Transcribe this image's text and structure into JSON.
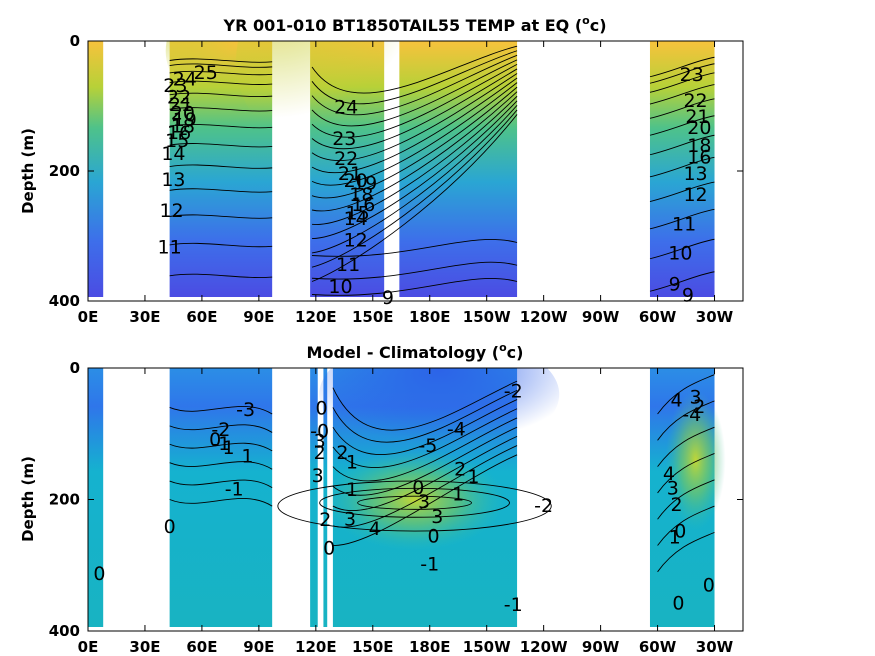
{
  "chart_data": [
    {
      "type": "heatmap",
      "title_main": "YR 001-010 BT1850TAIL55 TEMP at EQ (",
      "title_sup": "o",
      "title_end": "c)",
      "ylabel": "Depth (m)",
      "xlabel": "",
      "x_ticks": [
        "0E",
        "30E",
        "60E",
        "90E",
        "120E",
        "150E",
        "180E",
        "150W",
        "120W",
        "90W",
        "60W",
        "30W"
      ],
      "y_ticks": [
        "0",
        "200",
        "400"
      ],
      "ylim": [
        0,
        400
      ],
      "color_low": "#4a50e4",
      "color_high": "#f9bb3a",
      "data_regions": [
        [
          0,
          8
        ],
        [
          43,
          97
        ],
        [
          117,
          156
        ],
        [
          164,
          226
        ],
        [
          296,
          330
        ]
      ],
      "contour_labels": [
        {
          "t": "25",
          "lon": 62,
          "d": 48
        },
        {
          "t": "24",
          "lon": 51,
          "d": 58
        },
        {
          "t": "23",
          "lon": 46,
          "d": 68
        },
        {
          "t": "22",
          "lon": 48,
          "d": 85
        },
        {
          "t": "21",
          "lon": 49,
          "d": 97
        },
        {
          "t": "20",
          "lon": 50,
          "d": 110
        },
        {
          "t": "19",
          "lon": 51,
          "d": 120
        },
        {
          "t": "18",
          "lon": 50,
          "d": 130
        },
        {
          "t": "16",
          "lon": 48,
          "d": 140
        },
        {
          "t": "15",
          "lon": 47,
          "d": 152
        },
        {
          "t": "14",
          "lon": 45,
          "d": 172
        },
        {
          "t": "13",
          "lon": 45,
          "d": 212
        },
        {
          "t": "12",
          "lon": 44,
          "d": 260
        },
        {
          "t": "11",
          "lon": 43,
          "d": 316
        },
        {
          "t": "24",
          "lon": 136,
          "d": 101
        },
        {
          "t": "23",
          "lon": 135,
          "d": 149
        },
        {
          "t": "22",
          "lon": 136,
          "d": 180
        },
        {
          "t": "21",
          "lon": 138,
          "d": 203
        },
        {
          "t": "20",
          "lon": 141,
          "d": 214
        },
        {
          "t": "19",
          "lon": 146,
          "d": 218
        },
        {
          "t": "18",
          "lon": 144,
          "d": 235
        },
        {
          "t": "16",
          "lon": 145,
          "d": 251
        },
        {
          "t": "15",
          "lon": 142,
          "d": 264
        },
        {
          "t": "14",
          "lon": 141,
          "d": 272
        },
        {
          "t": "12",
          "lon": 141,
          "d": 305
        },
        {
          "t": "11",
          "lon": 137,
          "d": 343
        },
        {
          "t": "10",
          "lon": 133,
          "d": 377
        },
        {
          "t": "9",
          "lon": 158,
          "d": 394
        },
        {
          "t": "23",
          "lon": 318,
          "d": 51
        },
        {
          "t": "22",
          "lon": 320,
          "d": 91
        },
        {
          "t": "21",
          "lon": 321,
          "d": 115
        },
        {
          "t": "20",
          "lon": 322,
          "d": 132
        },
        {
          "t": "18",
          "lon": 322,
          "d": 160
        },
        {
          "t": "16",
          "lon": 322,
          "d": 178
        },
        {
          "t": "13",
          "lon": 320,
          "d": 203
        },
        {
          "t": "12",
          "lon": 320,
          "d": 235
        },
        {
          "t": "11",
          "lon": 314,
          "d": 281
        },
        {
          "t": "10",
          "lon": 312,
          "d": 325
        },
        {
          "t": "9",
          "lon": 309,
          "d": 373
        },
        {
          "t": "9",
          "lon": 316,
          "d": 390
        }
      ]
    },
    {
      "type": "heatmap",
      "title_main": "Model - Climatology (",
      "title_sup": "o",
      "title_end": "c)",
      "ylabel": "Depth (m)",
      "xlabel": "",
      "x_ticks": [
        "0E",
        "30E",
        "60E",
        "90E",
        "120E",
        "150E",
        "180E",
        "150W",
        "120W",
        "90W",
        "60W",
        "30W"
      ],
      "y_ticks": [
        "0",
        "200",
        "400"
      ],
      "ylim": [
        0,
        400
      ],
      "color_low": "#2f7bea",
      "color_high": "#b9d534",
      "data_regions": [
        [
          0,
          8
        ],
        [
          43,
          97
        ],
        [
          117,
          121
        ],
        [
          124,
          126
        ],
        [
          129,
          226
        ],
        [
          296,
          330
        ]
      ],
      "contour_labels": [
        {
          "t": "0",
          "lon": 6,
          "d": 312
        },
        {
          "t": "0",
          "lon": 43,
          "d": 240
        },
        {
          "t": "-1",
          "lon": 77,
          "d": 183
        },
        {
          "t": "1",
          "lon": 84,
          "d": 133
        },
        {
          "t": "-1",
          "lon": 70,
          "d": 114
        },
        {
          "t": "-2",
          "lon": 70,
          "d": 93
        },
        {
          "t": "0",
          "lon": 67,
          "d": 108
        },
        {
          "t": "1",
          "lon": 74,
          "d": 120
        },
        {
          "t": "-3",
          "lon": 83,
          "d": 62
        },
        {
          "t": "0",
          "lon": 123,
          "d": 60
        },
        {
          "t": "-0",
          "lon": 122,
          "d": 95
        },
        {
          "t": "3",
          "lon": 122,
          "d": 110
        },
        {
          "t": "2",
          "lon": 122,
          "d": 128
        },
        {
          "t": "3",
          "lon": 121,
          "d": 163
        },
        {
          "t": "2",
          "lon": 125,
          "d": 230
        },
        {
          "t": "0",
          "lon": 127,
          "d": 273
        },
        {
          "t": "2",
          "lon": 134,
          "d": 128
        },
        {
          "t": "1",
          "lon": 139,
          "d": 142
        },
        {
          "t": "1",
          "lon": 139,
          "d": 184
        },
        {
          "t": "3",
          "lon": 138,
          "d": 229
        },
        {
          "t": "4",
          "lon": 151,
          "d": 243
        },
        {
          "t": "-5",
          "lon": 179,
          "d": 117
        },
        {
          "t": "-4",
          "lon": 194,
          "d": 92
        },
        {
          "t": "-2",
          "lon": 224,
          "d": 34
        },
        {
          "t": "2",
          "lon": 196,
          "d": 153
        },
        {
          "t": "1",
          "lon": 203,
          "d": 164
        },
        {
          "t": "0",
          "lon": 174,
          "d": 181
        },
        {
          "t": "3",
          "lon": 177,
          "d": 202
        },
        {
          "t": "3",
          "lon": 184,
          "d": 225
        },
        {
          "t": "1",
          "lon": 195,
          "d": 191
        },
        {
          "t": "0",
          "lon": 182,
          "d": 255
        },
        {
          "t": "-1",
          "lon": 180,
          "d": 297
        },
        {
          "t": "-2",
          "lon": 240,
          "d": 208
        },
        {
          "t": "-1",
          "lon": 224,
          "d": 359
        },
        {
          "t": "4",
          "lon": 310,
          "d": 48
        },
        {
          "t": "3",
          "lon": 320,
          "d": 43
        },
        {
          "t": "2",
          "lon": 322,
          "d": 58
        },
        {
          "t": "-4",
          "lon": 318,
          "d": 70
        },
        {
          "t": "4",
          "lon": 306,
          "d": 160
        },
        {
          "t": "3",
          "lon": 308,
          "d": 182
        },
        {
          "t": "2",
          "lon": 310,
          "d": 207
        },
        {
          "t": "0",
          "lon": 312,
          "d": 247
        },
        {
          "t": "1",
          "lon": 309,
          "d": 256
        },
        {
          "t": "0",
          "lon": 311,
          "d": 357
        },
        {
          "t": "0",
          "lon": 327,
          "d": 329
        }
      ]
    }
  ]
}
